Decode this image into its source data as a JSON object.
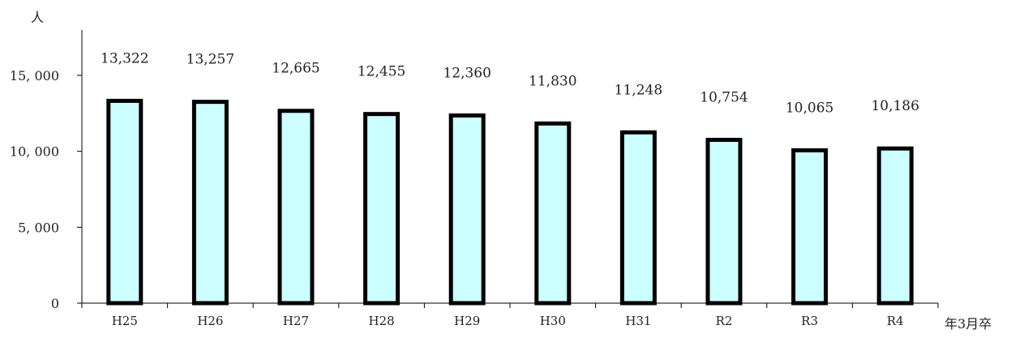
{
  "chart_data": {
    "type": "bar",
    "ylabel": "人",
    "xlabel": "年3月卒",
    "categories": [
      "H25",
      "H26",
      "H27",
      "H28",
      "H29",
      "H30",
      "H31",
      "R2",
      "R3",
      "R4"
    ],
    "values": [
      13322,
      13257,
      12665,
      12455,
      12360,
      11830,
      11248,
      10754,
      10065,
      10186
    ],
    "data_labels": [
      "13,322",
      "13,257",
      "12,665",
      "12,455",
      "12,360",
      "11,830",
      "11,248",
      "10,754",
      "10,065",
      "10,186"
    ],
    "ylim": [
      0,
      15000
    ],
    "yticks": [
      0,
      5000,
      10000,
      15000
    ],
    "ytick_labels": [
      "0",
      "5, 000",
      "10, 000",
      "15, 000"
    ],
    "grid": false,
    "legend": "none",
    "colors": {
      "bar_fill": "#ccffff",
      "bar_stroke": "#000000",
      "axis": "#000000"
    }
  }
}
